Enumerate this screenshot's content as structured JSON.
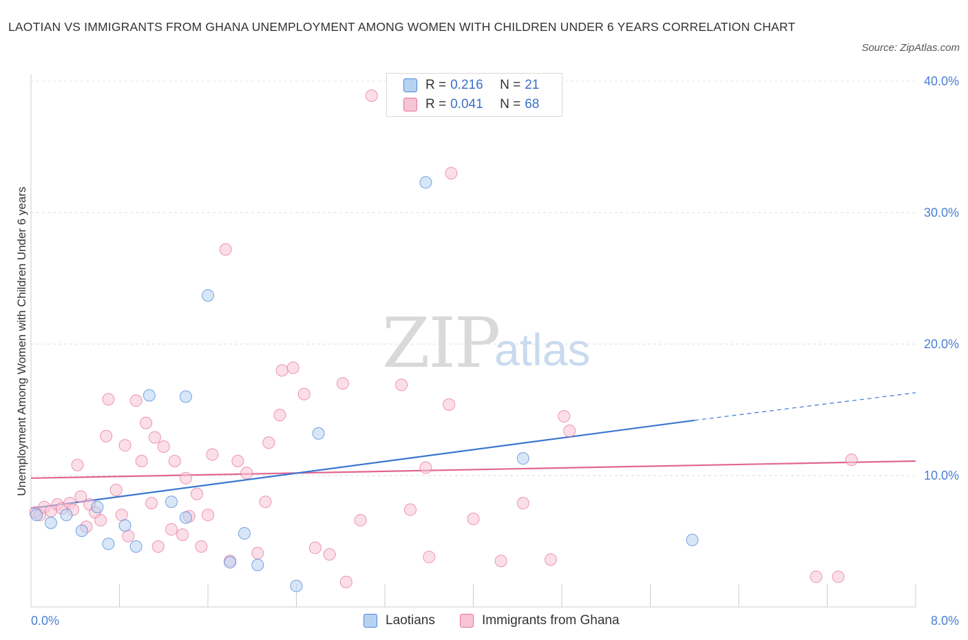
{
  "title": "LAOTIAN VS IMMIGRANTS FROM GHANA UNEMPLOYMENT AMONG WOMEN WITH CHILDREN UNDER 6 YEARS CORRELATION CHART",
  "source": "Source: ZipAtlas.com",
  "watermark": {
    "zip": "ZIP",
    "atlas": "atlas"
  },
  "legend": {
    "rows": [
      {
        "r_label": "R = ",
        "r_value": "0.216",
        "n_label": "N = ",
        "n_value": "21"
      },
      {
        "r_label": "R = ",
        "r_value": "0.041",
        "n_label": "N = ",
        "n_value": "68"
      }
    ]
  },
  "chart_data": {
    "type": "scatter",
    "title": "LAOTIAN VS IMMIGRANTS FROM GHANA UNEMPLOYMENT AMONG WOMEN WITH CHILDREN UNDER 6 YEARS CORRELATION CHART",
    "xlabel": "",
    "ylabel": "Unemployment Among Women with Children Under 6 years",
    "xlim": [
      0,
      8
    ],
    "ylim": [
      0,
      40
    ],
    "x_tick_labels": [
      "0.0%",
      "8.0%"
    ],
    "y_tick_labels": [
      "10.0%",
      "20.0%",
      "30.0%",
      "40.0%"
    ],
    "y_ticks": [
      10,
      20,
      30,
      40
    ],
    "grid": "horizontal dashed",
    "legend_position": "top-center",
    "colors": {
      "Laotians": "#4a86d8",
      "Immigrants from Ghana": "#e8739b"
    },
    "series": [
      {
        "name": "Laotians",
        "color": "#4a86d8",
        "fill": "#b8d2f2",
        "trend": {
          "x0": 0.0,
          "y0": 7.5,
          "x1": 6.0,
          "y1": 14.2,
          "dash_to_x": 8.0,
          "dash_to_y": 16.3
        },
        "points": [
          [
            0.05,
            7.0
          ],
          [
            0.18,
            6.4
          ],
          [
            0.32,
            7.0
          ],
          [
            0.46,
            5.8
          ],
          [
            0.6,
            7.6
          ],
          [
            0.7,
            4.8
          ],
          [
            0.85,
            6.2
          ],
          [
            0.95,
            4.6
          ],
          [
            1.07,
            16.1
          ],
          [
            1.27,
            8.0
          ],
          [
            1.4,
            6.8
          ],
          [
            1.4,
            16.0
          ],
          [
            1.6,
            23.7
          ],
          [
            1.8,
            3.4
          ],
          [
            1.93,
            5.6
          ],
          [
            2.05,
            3.2
          ],
          [
            2.4,
            1.6
          ],
          [
            2.6,
            13.2
          ],
          [
            3.57,
            32.3
          ],
          [
            4.45,
            11.3
          ],
          [
            5.98,
            5.1
          ]
        ]
      },
      {
        "name": "Immigrants from Ghana",
        "color": "#e8739b",
        "fill": "#f7c4d5",
        "trend": {
          "x0": 0.0,
          "y0": 9.8,
          "x1": 8.0,
          "y1": 11.1
        },
        "points": [
          [
            0.04,
            7.2
          ],
          [
            0.08,
            7.0
          ],
          [
            0.12,
            7.6
          ],
          [
            0.18,
            7.3
          ],
          [
            0.24,
            7.8
          ],
          [
            0.28,
            7.5
          ],
          [
            0.35,
            7.9
          ],
          [
            0.38,
            7.4
          ],
          [
            0.42,
            10.8
          ],
          [
            0.45,
            8.4
          ],
          [
            0.5,
            6.1
          ],
          [
            0.53,
            7.8
          ],
          [
            0.58,
            7.2
          ],
          [
            0.63,
            6.6
          ],
          [
            0.68,
            13.0
          ],
          [
            0.7,
            15.8
          ],
          [
            0.77,
            8.9
          ],
          [
            0.82,
            7.0
          ],
          [
            0.85,
            12.3
          ],
          [
            0.88,
            5.4
          ],
          [
            0.95,
            15.7
          ],
          [
            1.0,
            11.1
          ],
          [
            1.04,
            14.0
          ],
          [
            1.09,
            7.9
          ],
          [
            1.12,
            12.9
          ],
          [
            1.15,
            4.6
          ],
          [
            1.2,
            12.2
          ],
          [
            1.27,
            5.9
          ],
          [
            1.3,
            11.1
          ],
          [
            1.37,
            5.5
          ],
          [
            1.4,
            9.8
          ],
          [
            1.43,
            6.9
          ],
          [
            1.5,
            8.6
          ],
          [
            1.54,
            4.6
          ],
          [
            1.6,
            7.0
          ],
          [
            1.64,
            11.6
          ],
          [
            1.76,
            27.2
          ],
          [
            1.8,
            3.5
          ],
          [
            1.87,
            11.1
          ],
          [
            1.95,
            10.2
          ],
          [
            2.05,
            4.1
          ],
          [
            2.12,
            8.0
          ],
          [
            2.15,
            12.5
          ],
          [
            2.25,
            14.6
          ],
          [
            2.27,
            18.0
          ],
          [
            2.37,
            18.2
          ],
          [
            2.47,
            16.2
          ],
          [
            2.57,
            4.5
          ],
          [
            2.7,
            4.0
          ],
          [
            2.82,
            17.0
          ],
          [
            2.85,
            1.9
          ],
          [
            2.98,
            6.6
          ],
          [
            3.08,
            38.9
          ],
          [
            3.35,
            16.9
          ],
          [
            3.43,
            7.4
          ],
          [
            3.57,
            10.6
          ],
          [
            3.6,
            3.8
          ],
          [
            3.78,
            15.4
          ],
          [
            3.8,
            33.0
          ],
          [
            4.0,
            6.7
          ],
          [
            4.25,
            3.5
          ],
          [
            4.45,
            7.9
          ],
          [
            4.7,
            3.6
          ],
          [
            4.82,
            14.5
          ],
          [
            4.87,
            13.4
          ],
          [
            7.1,
            2.3
          ],
          [
            7.3,
            2.3
          ],
          [
            7.42,
            11.2
          ]
        ]
      }
    ]
  },
  "bottom_legend": {
    "laotians": "Laotians",
    "ghana": "Immigrants from Ghana"
  }
}
